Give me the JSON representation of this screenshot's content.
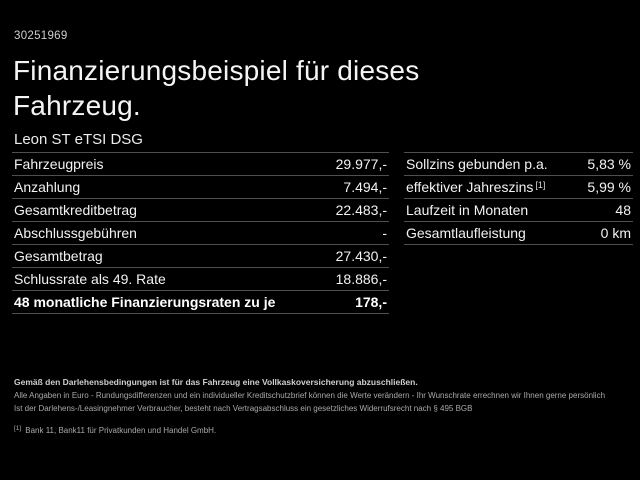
{
  "page": {
    "background_color": "#000000",
    "text_color": "#f2f2f2",
    "separator_color": "#4f4f4f",
    "ref_id": "30251969"
  },
  "header": {
    "title_line1": "Finanzierungsbeispiel für dieses",
    "title_line2": "Fahrzeug.",
    "model": "Leon ST eTSI DSG"
  },
  "left_table": {
    "rows": [
      {
        "label": "Fahrzeugpreis",
        "value": "29.977,-"
      },
      {
        "label": "Anzahlung",
        "value": "7.494,-"
      },
      {
        "label": "Gesamtkreditbetrag",
        "value": "22.483,-"
      },
      {
        "label": "Abschlussgebühren",
        "value": "-"
      },
      {
        "label": "Gesamtbetrag",
        "value": "27.430,-"
      },
      {
        "label": "Schlussrate als 49. Rate",
        "value": "18.886,-"
      },
      {
        "label": "48 monatliche Finanzierungsraten zu je",
        "value": "178,-"
      }
    ]
  },
  "right_table": {
    "rows": [
      {
        "label": "Sollzins gebunden p.a.",
        "value": "5,83 %"
      },
      {
        "label": "effektiver Jahreszins",
        "sup": "[1]",
        "value": "5,99 %"
      },
      {
        "label": "Laufzeit in Monaten",
        "value": "48"
      },
      {
        "label": "Gesamtlaufleistung",
        "value": "0 km"
      }
    ]
  },
  "legal": {
    "line1": "Gemäß den Darlehensbedingungen ist für das Fahrzeug eine Vollkaskoversicherung abzuschließen.",
    "line2": "Alle Angaben in Euro - Rundungsdifferenzen und ein individueller Kreditschutzbrief können die Werte verändern - Ihr Wunschrate errechnen wir Ihnen gerne persönlich",
    "line3": "Ist der Darlehens-/Leasingnehmer Verbraucher, besteht nach Vertragsabschluss ein gesetzliches Widerrufsrecht nach § 495 BGB",
    "footnote_marker": "[1]",
    "footnote_text": "Bank 11, Bank11 für Privatkunden und Handel GmbH."
  }
}
